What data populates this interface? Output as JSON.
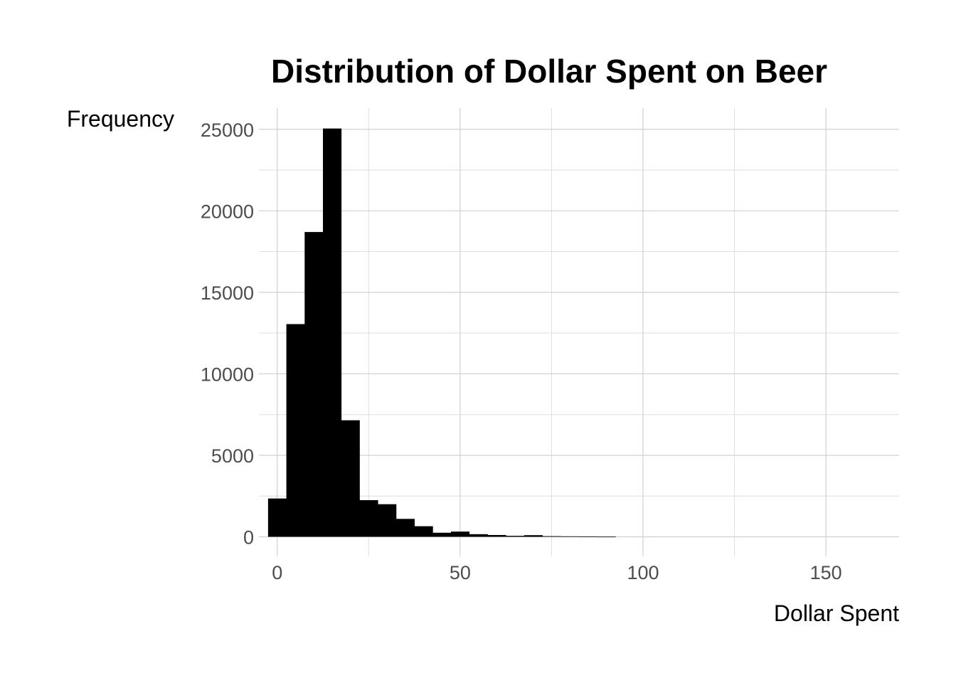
{
  "chart_data": {
    "type": "bar",
    "title": "Distribution of Dollar Spent on Beer",
    "xlabel": "Dollar Spent",
    "ylabel": "Frequency",
    "xlim": [
      -5,
      170
    ],
    "ylim": [
      -1200,
      26300
    ],
    "x_ticks": [
      0,
      50,
      100,
      150
    ],
    "y_ticks": [
      0,
      5000,
      10000,
      15000,
      20000,
      25000
    ],
    "x_minor_ticks": [
      25,
      75,
      125
    ],
    "y_minor_ticks": [
      2500,
      7500,
      12500,
      17500,
      22500
    ],
    "grid": true,
    "bin_width": 5,
    "bins": [
      {
        "x": 0,
        "count": 2350
      },
      {
        "x": 5,
        "count": 13050
      },
      {
        "x": 10,
        "count": 18700
      },
      {
        "x": 15,
        "count": 25050
      },
      {
        "x": 20,
        "count": 7150
      },
      {
        "x": 25,
        "count": 2250
      },
      {
        "x": 30,
        "count": 2000
      },
      {
        "x": 35,
        "count": 1100
      },
      {
        "x": 40,
        "count": 650
      },
      {
        "x": 45,
        "count": 250
      },
      {
        "x": 50,
        "count": 320
      },
      {
        "x": 55,
        "count": 160
      },
      {
        "x": 60,
        "count": 110
      },
      {
        "x": 65,
        "count": 60
      },
      {
        "x": 70,
        "count": 100
      },
      {
        "x": 75,
        "count": 40
      },
      {
        "x": 80,
        "count": 30
      },
      {
        "x": 85,
        "count": 20
      },
      {
        "x": 90,
        "count": 10
      }
    ]
  }
}
